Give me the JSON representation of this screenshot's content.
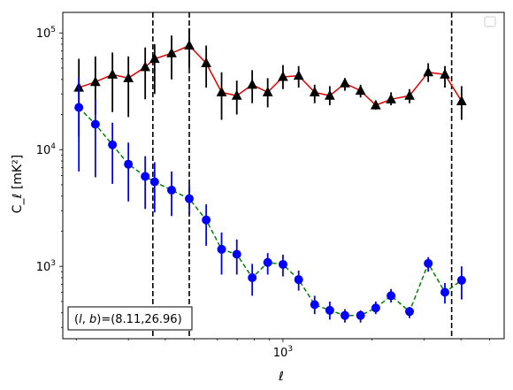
{
  "chart_data": {
    "type": "scatter",
    "xlabel": "ℓ",
    "ylabel": "C_ℓ  [mK²]",
    "xscale": "log",
    "yscale": "log",
    "xlim": [
      180,
      5600
    ],
    "ylim": [
      240,
      150000
    ],
    "x_tick_labels": [
      {
        "value": 1000,
        "mant": "10",
        "exp": "3"
      }
    ],
    "y_tick_labels": [
      {
        "value": 1000,
        "mant": "10",
        "exp": "3"
      },
      {
        "value": 10000,
        "mant": "10",
        "exp": "4"
      },
      {
        "value": 100000,
        "mant": "10",
        "exp": "5"
      }
    ],
    "legend": {
      "placement": "top-right",
      "entries": []
    },
    "annotation": "(l,b)=(8.11,26.96)",
    "annotation_parts": {
      "l": "l",
      "b": "b",
      "values": "=(8.11,26.96)"
    },
    "vlines": [
      {
        "x": 363,
        "style": "dashed",
        "color": "#000000"
      },
      {
        "x": 482,
        "style": "dashed",
        "color": "#000000"
      },
      {
        "x": 3720,
        "style": "dashed",
        "color": "#000000"
      }
    ],
    "series": [
      {
        "color": "#e00000",
        "marker": "triangle",
        "marker_color": "#000000",
        "errorbar_color": "#000000",
        "line_style": "solid",
        "points": [
          {
            "x": 204,
            "y": 34000,
            "lo": 13000,
            "hi": 60000
          },
          {
            "x": 232,
            "y": 38000,
            "lo": 20000,
            "hi": 63000
          },
          {
            "x": 265,
            "y": 44000,
            "lo": 21000,
            "hi": 68000
          },
          {
            "x": 300,
            "y": 41000,
            "lo": 19000,
            "hi": 63000
          },
          {
            "x": 342,
            "y": 51000,
            "lo": 27000,
            "hi": 75000
          },
          {
            "x": 368,
            "y": 60000,
            "lo": 30000,
            "hi": 80000
          },
          {
            "x": 420,
            "y": 67000,
            "lo": 40000,
            "hi": 95000
          },
          {
            "x": 482,
            "y": 78000,
            "lo": 50000,
            "hi": 110000
          },
          {
            "x": 550,
            "y": 55000,
            "lo": 34000,
            "hi": 78000
          },
          {
            "x": 620,
            "y": 31000,
            "lo": 18000,
            "hi": 46000
          },
          {
            "x": 698,
            "y": 29000,
            "lo": 20000,
            "hi": 39000
          },
          {
            "x": 787,
            "y": 36000,
            "lo": 25000,
            "hi": 48000
          },
          {
            "x": 888,
            "y": 31000,
            "lo": 23000,
            "hi": 41000
          },
          {
            "x": 1000,
            "y": 42000,
            "lo": 33000,
            "hi": 53000
          },
          {
            "x": 1130,
            "y": 43000,
            "lo": 34000,
            "hi": 52000
          },
          {
            "x": 1280,
            "y": 31000,
            "lo": 25000,
            "hi": 36000
          },
          {
            "x": 1440,
            "y": 29000,
            "lo": 24000,
            "hi": 35000
          },
          {
            "x": 1620,
            "y": 37000,
            "lo": 32000,
            "hi": 41000
          },
          {
            "x": 1830,
            "y": 32000,
            "lo": 28000,
            "hi": 36000
          },
          {
            "x": 2060,
            "y": 24000,
            "lo": 22000,
            "hi": 26000
          },
          {
            "x": 2320,
            "y": 27000,
            "lo": 24000,
            "hi": 31000
          },
          {
            "x": 2680,
            "y": 29000,
            "lo": 25000,
            "hi": 33000
          },
          {
            "x": 3100,
            "y": 46000,
            "lo": 38000,
            "hi": 55000
          },
          {
            "x": 3530,
            "y": 44000,
            "lo": 34000,
            "hi": 52000
          },
          {
            "x": 4020,
            "y": 26000,
            "lo": 18000,
            "hi": 35000
          }
        ]
      },
      {
        "color": "#008000",
        "marker": "circle",
        "marker_color": "#0000ff",
        "errorbar_color": "#0000ff",
        "line_style": "dashed",
        "points": [
          {
            "x": 204,
            "y": 23000,
            "lo": 6500,
            "hi": 42000
          },
          {
            "x": 232,
            "y": 16500,
            "lo": 5800,
            "hi": 27000
          },
          {
            "x": 265,
            "y": 11000,
            "lo": 5100,
            "hi": 17000
          },
          {
            "x": 300,
            "y": 7500,
            "lo": 3600,
            "hi": 11500
          },
          {
            "x": 342,
            "y": 5900,
            "lo": 3100,
            "hi": 8800
          },
          {
            "x": 368,
            "y": 5300,
            "lo": 2900,
            "hi": 7800
          },
          {
            "x": 420,
            "y": 4500,
            "lo": 2700,
            "hi": 6500
          },
          {
            "x": 482,
            "y": 3800,
            "lo": 2800,
            "hi": 5000
          },
          {
            "x": 550,
            "y": 2500,
            "lo": 1500,
            "hi": 3400
          },
          {
            "x": 620,
            "y": 1400,
            "lo": 850,
            "hi": 1950
          },
          {
            "x": 698,
            "y": 1270,
            "lo": 850,
            "hi": 1700
          },
          {
            "x": 787,
            "y": 800,
            "lo": 560,
            "hi": 1050
          },
          {
            "x": 888,
            "y": 1080,
            "lo": 850,
            "hi": 1300
          },
          {
            "x": 1000,
            "y": 1040,
            "lo": 820,
            "hi": 1260
          },
          {
            "x": 1130,
            "y": 770,
            "lo": 620,
            "hi": 920
          },
          {
            "x": 1280,
            "y": 470,
            "lo": 390,
            "hi": 560
          },
          {
            "x": 1440,
            "y": 420,
            "lo": 350,
            "hi": 500
          },
          {
            "x": 1620,
            "y": 380,
            "lo": 330,
            "hi": 430
          },
          {
            "x": 1830,
            "y": 380,
            "lo": 330,
            "hi": 420
          },
          {
            "x": 2060,
            "y": 440,
            "lo": 390,
            "hi": 500
          },
          {
            "x": 2320,
            "y": 560,
            "lo": 490,
            "hi": 640
          },
          {
            "x": 2680,
            "y": 410,
            "lo": 360,
            "hi": 450
          },
          {
            "x": 3100,
            "y": 1060,
            "lo": 900,
            "hi": 1200
          },
          {
            "x": 3530,
            "y": 600,
            "lo": 480,
            "hi": 720
          },
          {
            "x": 4020,
            "y": 760,
            "lo": 520,
            "hi": 1000
          }
        ]
      }
    ]
  }
}
